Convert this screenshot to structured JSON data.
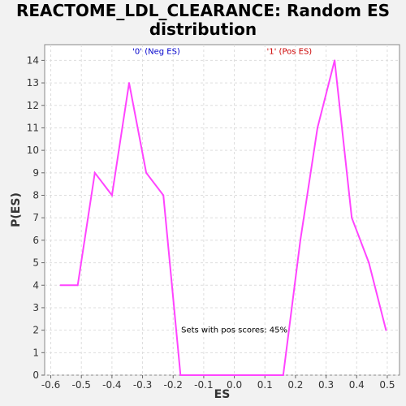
{
  "chart_data": {
    "type": "line",
    "title": "REACTOME_LDL_CLEARANCE: Random ES distribution",
    "xlabel": "ES",
    "ylabel": "P(ES)",
    "xlim": [
      -0.62,
      0.54
    ],
    "ylim": [
      0,
      14.7
    ],
    "x_ticks": [
      -0.6,
      -0.5,
      -0.4,
      -0.3,
      -0.2,
      -0.1,
      0.0,
      0.1,
      0.2,
      0.3,
      0.4,
      0.5
    ],
    "x_tick_labels": [
      "-0.6",
      "-0.5",
      "-0.4",
      "-0.3",
      "-0.2",
      "-0.1",
      "0.0",
      "0.1",
      "0.2",
      "0.3",
      "0.4",
      "0.5"
    ],
    "y_ticks": [
      0,
      1,
      2,
      3,
      4,
      5,
      6,
      7,
      8,
      9,
      10,
      11,
      12,
      13,
      14
    ],
    "y_tick_labels": [
      "0",
      "1",
      "2",
      "3",
      "4",
      "5",
      "6",
      "7",
      "8",
      "9",
      "10",
      "11",
      "12",
      "13",
      "14"
    ],
    "grid": true,
    "series": [
      {
        "color": "#ff44ff",
        "x": [
          -0.568,
          -0.512,
          -0.456,
          -0.4,
          -0.344,
          -0.288,
          -0.232,
          -0.176,
          0.16,
          0.216,
          0.272,
          0.328,
          0.384,
          0.44,
          0.496
        ],
        "y": [
          4,
          4,
          9,
          8,
          13,
          9,
          8,
          0,
          0,
          6,
          11,
          14,
          7,
          5,
          2
        ]
      }
    ],
    "annotations": [
      {
        "text": "'0' (Neg ES)",
        "x": -0.255,
        "y": 14.4,
        "color": "#0000cc"
      },
      {
        "text": "'1' (Pos ES)",
        "x": 0.18,
        "y": 14.4,
        "color": "#cc0000"
      },
      {
        "text": "Sets with pos scores: 45%",
        "x": 0.0,
        "y": 2.0,
        "color": "#000000"
      }
    ]
  }
}
